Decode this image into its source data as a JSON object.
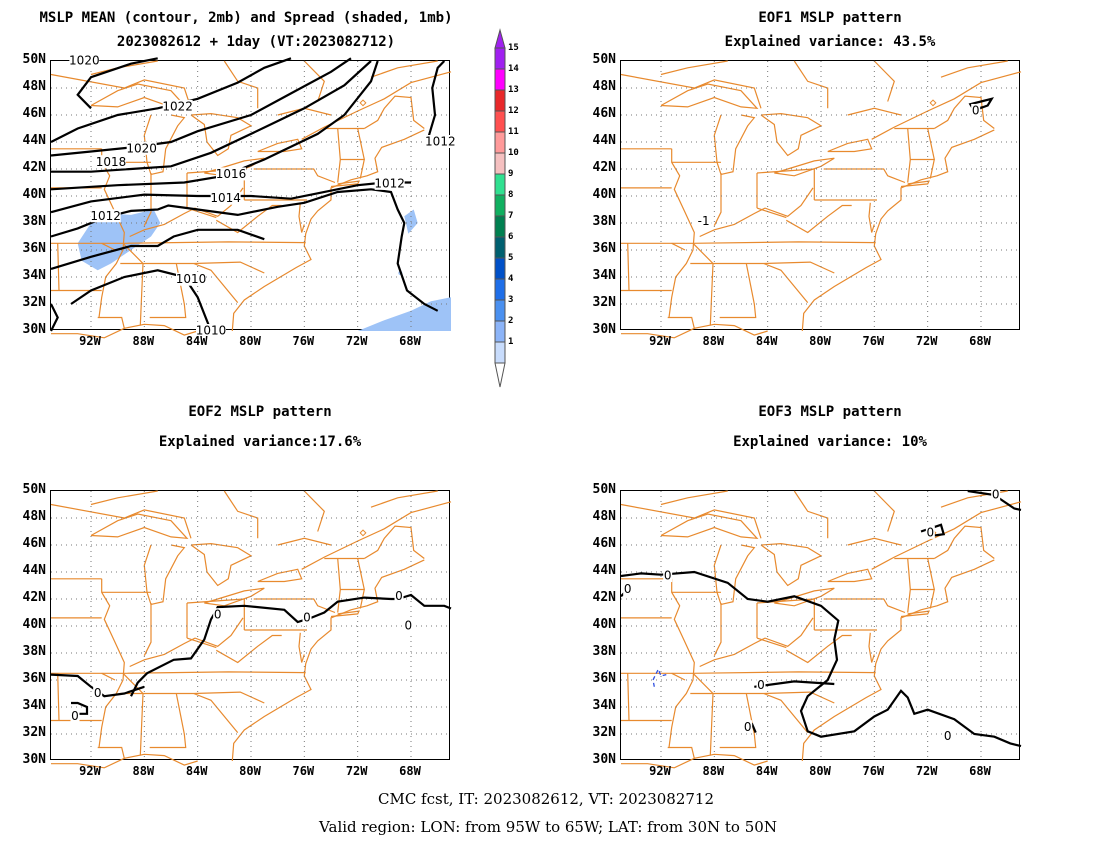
{
  "panels": {
    "mean": {
      "title_line1": "MSLP MEAN (contour, 2mb) and Spread (shaded, 1mb)",
      "title_line2": "2023082612 + 1day (VT:2023082712)",
      "contour_labels": [
        "1020",
        "1022",
        "1020",
        "1018",
        "1016",
        "1012",
        "1014",
        "1012",
        "1010",
        "1010",
        "1012"
      ]
    },
    "eof1": {
      "title_line1": "EOF1 MSLP pattern",
      "title_line2": "Explained variance: 43.5%",
      "contour_labels": [
        "0",
        "-1"
      ]
    },
    "eof2": {
      "title_line1": "EOF2 MSLP pattern",
      "title_line2": "Explained variance:17.6%",
      "contour_labels": [
        "0",
        "0",
        "0",
        "0",
        "0",
        "0"
      ]
    },
    "eof3": {
      "title_line1": "EOF3 MSLP pattern",
      "title_line2": "Explained variance: 10%",
      "contour_labels": [
        "0",
        "0",
        "0",
        "0",
        "0",
        "0",
        "0"
      ]
    }
  },
  "axes": {
    "lat_labels": [
      "50N",
      "48N",
      "46N",
      "44N",
      "42N",
      "40N",
      "38N",
      "36N",
      "34N",
      "32N",
      "30N"
    ],
    "lon_labels": [
      "92W",
      "88W",
      "84W",
      "80W",
      "76W",
      "72W",
      "68W"
    ]
  },
  "colorbar": {
    "levels": [
      "15",
      "14",
      "13",
      "12",
      "11",
      "10",
      "9",
      "8",
      "7",
      "6",
      "5",
      "4",
      "3",
      "2",
      "1"
    ],
    "colors": [
      "#a020f0",
      "#ff00ff",
      "#e8282a",
      "#ff5050",
      "#ff9a9a",
      "#f5c0c0",
      "#30e090",
      "#10b060",
      "#008050",
      "#006070",
      "#0050c8",
      "#1e6ee8",
      "#4a90f0",
      "#8cb4f8",
      "#c8dcfc"
    ]
  },
  "footer": {
    "line1": "CMC fcst, IT: 2023082612, VT: 2023082712",
    "line2": "Valid region: LON: from 95W to 65W; LAT: from 30N to 50N"
  },
  "colors": {
    "border": "#e88a2e",
    "contour": "#000000",
    "spread": "#9ec3f7",
    "negative": "#3050e0"
  }
}
